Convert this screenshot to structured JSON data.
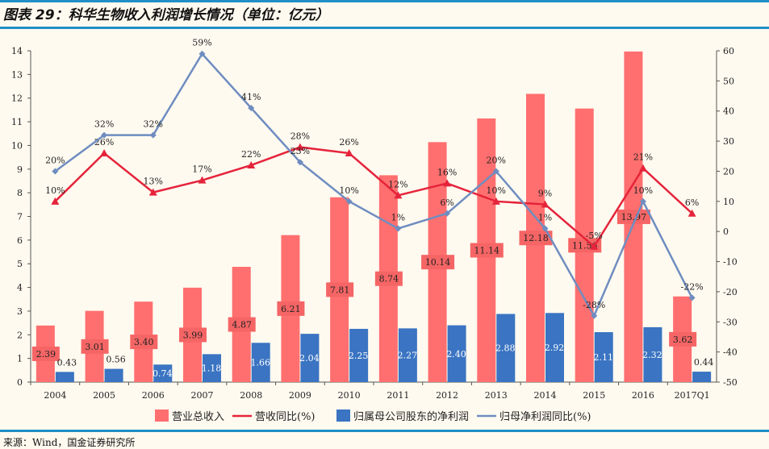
{
  "title": "图表 29：科华生物收入利润增长情况（单位：亿元）",
  "source": "来源：Wind，国金证券研究所",
  "colors": {
    "revenue_bar": "#ff6f6f",
    "revenue_label_bg": "#f56565",
    "profit_bar": "#3a74c2",
    "revenue_growth_line": "#e5243b",
    "profit_growth_line": "#6f8dc0",
    "rule": "#1f8fc6",
    "background": "#fffaf0"
  },
  "chart_data": {
    "type": "bar+line",
    "title": "",
    "categories": [
      "2004",
      "2005",
      "2006",
      "2007",
      "2008",
      "2009",
      "2010",
      "2011",
      "2012",
      "2013",
      "2014",
      "2015",
      "2016",
      "2017Q1"
    ],
    "left_axis": {
      "range": [
        0,
        14
      ],
      "ticks": [
        "0",
        "1",
        "2",
        "3",
        "4",
        "5",
        "6",
        "7",
        "8",
        "9",
        "10",
        "11",
        "12",
        "13",
        "14"
      ]
    },
    "right_axis": {
      "range": [
        -50,
        60
      ],
      "ticks": [
        "-50",
        "-40",
        "-30",
        "-20",
        "-10",
        "0",
        "10",
        "20",
        "30",
        "40",
        "50",
        "60"
      ]
    },
    "grid": false,
    "legend_placement": "bottom",
    "series": [
      {
        "name": "营业总收入",
        "type": "bar",
        "axis": "left",
        "values": [
          2.39,
          3.01,
          3.4,
          3.99,
          4.87,
          6.21,
          7.81,
          8.74,
          10.14,
          11.14,
          12.18,
          11.56,
          13.97,
          3.62
        ],
        "labels": [
          "2.39",
          "3.01",
          "3.40",
          "3.99",
          "4.87",
          "6.21",
          "7.81",
          "8.74",
          "10.14",
          "11.14",
          "12.18",
          "11.56",
          "13.97",
          "3.62"
        ]
      },
      {
        "name": "营收同比(%)",
        "type": "line",
        "axis": "right",
        "marker": "triangle",
        "values": [
          10,
          26,
          13,
          17,
          22,
          28,
          26,
          12,
          16,
          10,
          9,
          -5,
          21,
          6
        ],
        "labels": [
          "10%",
          "26%",
          "13%",
          "17%",
          "22%",
          "28%",
          "26%",
          "12%",
          "16%",
          "10%",
          "9%",
          "-5%",
          "21%",
          "6%"
        ]
      },
      {
        "name": "归属母公司股东的净利润",
        "type": "bar",
        "axis": "left",
        "values": [
          0.43,
          0.56,
          0.74,
          1.18,
          1.66,
          2.04,
          2.25,
          2.27,
          2.4,
          2.88,
          2.92,
          2.11,
          2.32,
          0.44
        ],
        "labels": [
          "0.43",
          "0.56",
          "0.74",
          "1.18",
          "1.66",
          "2.04",
          "2.25",
          "2.27",
          "2.40",
          "2.88",
          "2.92",
          "2.11",
          "2.32",
          "0.44"
        ]
      },
      {
        "name": "归母净利润同比(%)",
        "type": "line",
        "axis": "right",
        "marker": "diamond",
        "values": [
          20,
          32,
          32,
          59,
          41,
          23,
          10,
          1,
          6,
          20,
          1,
          -28,
          10,
          -22
        ],
        "labels": [
          "20%",
          "32%",
          "32%",
          "59%",
          "41%",
          "23%",
          "10%",
          "1%",
          "6%",
          "20%",
          "1%",
          "-28%",
          "10%",
          "-22%"
        ]
      }
    ]
  }
}
